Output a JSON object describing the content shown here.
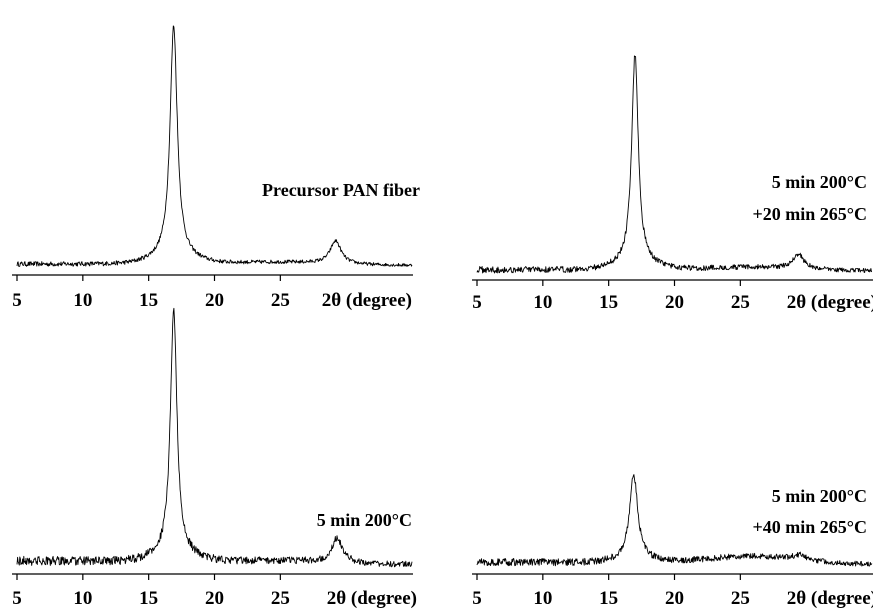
{
  "chart_data": [
    {
      "type": "line",
      "xlim": [
        5,
        35
      ],
      "xticks": [
        5,
        10,
        15,
        20,
        25
      ],
      "xlabel": "2θ (degree)",
      "ylim": [
        0,
        100
      ],
      "grid": false,
      "annotation": [
        "Precursor PAN fiber"
      ],
      "peaks": [
        {
          "center": 16.9,
          "height": 91,
          "width": 0.33
        },
        {
          "center": 29.2,
          "height": 9,
          "width": 0.5
        }
      ],
      "baseline": {
        "start": 1.5,
        "end": 1.0,
        "hump_center": 25.0,
        "hump_height": 1.0
      },
      "noise": 0.6,
      "series": [
        {
          "x": [
            5,
            10,
            15,
            16.9,
            20,
            25,
            29.2,
            35
          ],
          "y": [
            1.5,
            2.2,
            5.5,
            92.5,
            4.3,
            3.0,
            10.5,
            1.2
          ]
        }
      ]
    },
    {
      "type": "line",
      "xlim": [
        5,
        35
      ],
      "xticks": [
        5,
        10,
        15,
        20,
        25
      ],
      "xlabel": "2θ (degree)",
      "ylim": [
        0,
        100
      ],
      "grid": false,
      "annotation": [
        "5 min 200°C",
        "+20 min 265°C"
      ],
      "peaks": [
        {
          "center": 17.0,
          "height": 100,
          "width": 0.3
        },
        {
          "center": 29.4,
          "height": 7,
          "width": 0.5
        }
      ],
      "baseline": {
        "start": 1.5,
        "end": 1.0,
        "hump_center": 26.0,
        "hump_height": 1.5
      },
      "noise": 1.0,
      "series": [
        {
          "x": [
            5,
            10,
            15,
            17.0,
            20,
            25,
            29.4,
            35
          ],
          "y": [
            2.0,
            2.0,
            4.0,
            101.0,
            3.5,
            3.0,
            8.5,
            1.0
          ]
        }
      ]
    },
    {
      "type": "line",
      "xlim": [
        5,
        35
      ],
      "xticks": [
        5,
        10,
        15,
        20,
        25
      ],
      "xlabel": "2θ (degree)",
      "ylim": [
        0,
        100
      ],
      "grid": false,
      "annotation": [
        "5 min 200°C"
      ],
      "peaks": [
        {
          "center": 16.9,
          "height": 100,
          "width": 0.3
        },
        {
          "center": 29.3,
          "height": 10,
          "width": 0.5
        }
      ],
      "baseline": {
        "start": 2.5,
        "end": 1.0,
        "hump_center": 25.0,
        "hump_height": 1.0
      },
      "noise": 1.2,
      "series": [
        {
          "x": [
            5,
            10,
            15,
            16.9,
            20,
            25,
            29.3,
            35
          ],
          "y": [
            2.5,
            2.5,
            4.5,
            101.5,
            4.0,
            3.0,
            11.5,
            1.0
          ]
        }
      ]
    },
    {
      "type": "line",
      "xlim": [
        5,
        35
      ],
      "xticks": [
        5,
        10,
        15,
        20,
        25
      ],
      "xlabel": "2θ (degree)",
      "ylim": [
        0,
        100
      ],
      "grid": false,
      "annotation": [
        "5 min 200°C",
        "+40 min 265°C"
      ],
      "peaks": [
        {
          "center": 16.9,
          "height": 35,
          "width": 0.38
        },
        {
          "center": 29.5,
          "height": 2,
          "width": 0.6
        }
      ],
      "baseline": {
        "start": 2.0,
        "end": 1.0,
        "hump_center": 26.0,
        "hump_height": 3.0
      },
      "noise": 1.0,
      "series": [
        {
          "x": [
            5,
            10,
            15,
            16.9,
            20,
            25,
            29.5,
            35
          ],
          "y": [
            2.0,
            2.0,
            3.0,
            37.0,
            3.5,
            5.0,
            5.0,
            1.0
          ]
        }
      ]
    }
  ]
}
